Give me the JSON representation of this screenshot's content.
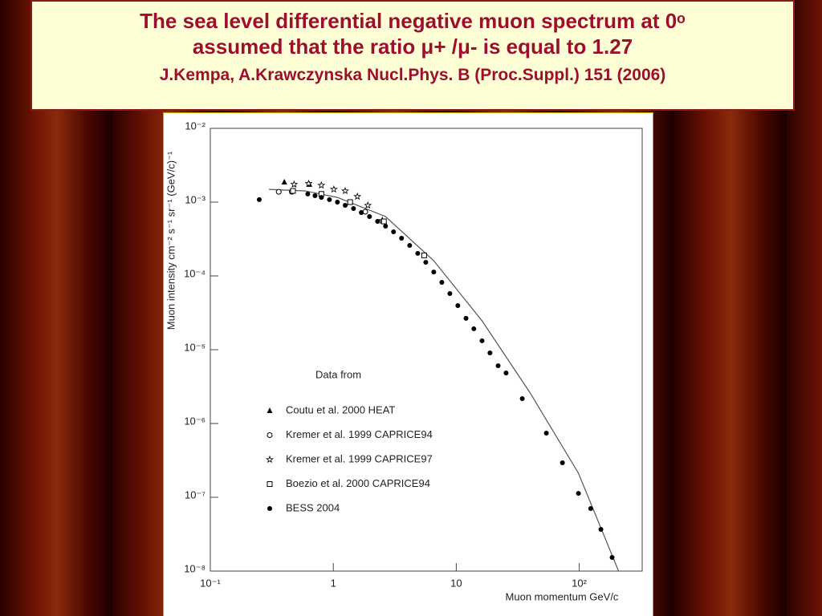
{
  "header": {
    "title": [
      "The sea level differential negative muon spectrum at 0ᵒ",
      "assumed  that the ratio μ+ /μ- is equal to 1.27"
    ],
    "subtitle": "J.Kempa, A.Krawczynska Nucl.Phys. B (Proc.Suppl.) 151 (2006)"
  },
  "chart_data": {
    "type": "scatter",
    "xlabel": "Muon momentum GeV/c",
    "ylabel": "Muon intensity cm⁻² s⁻¹ sr⁻¹ (GeV/c)⁻¹",
    "xscale": "log",
    "yscale": "log",
    "xlim": [
      0.1,
      325
    ],
    "ylim": [
      1e-08,
      0.01
    ],
    "xticks": [
      {
        "value": 0.1,
        "label": "10⁻¹"
      },
      1,
      10,
      {
        "value": 100,
        "label": "10²"
      }
    ],
    "yticks": [
      {
        "value": 1e-08,
        "label": "10⁻⁸"
      },
      {
        "value": 1e-07,
        "label": "10⁻⁷"
      },
      {
        "value": 1e-06,
        "label": "10⁻⁶"
      },
      {
        "value": 1e-05,
        "label": "10⁻⁵"
      },
      {
        "value": 0.0001,
        "label": "10⁻⁴"
      },
      {
        "value": 0.001,
        "label": "10⁻³"
      },
      {
        "value": 0.01,
        "label": "10⁻²"
      }
    ],
    "legend": "center left",
    "legend_title": "Data from",
    "series": [
      {
        "name": "Coutu et al. 2000 HEAT",
        "marker": "triangle",
        "color": "#000000",
        "x": [
          0.4,
          0.64
        ],
        "values": [
          0.00187,
          0.00174
        ]
      },
      {
        "name": "Kremer et al. 1999 CAPRICE94",
        "marker": "circle-open",
        "color": "#000000",
        "x": [
          0.36,
          0.46,
          1.82
        ],
        "values": [
          0.00138,
          0.00138,
          0.00074
        ]
      },
      {
        "name": "Kremer et al. 1999 CAPRICE97",
        "marker": "star",
        "color": "#000000",
        "x": [
          0.48,
          0.63,
          0.8,
          1.01,
          1.25,
          1.57,
          1.91,
          2.5
        ],
        "values": [
          0.00174,
          0.00178,
          0.00169,
          0.00149,
          0.00142,
          0.00119,
          0.000905,
          0.000562
        ]
      },
      {
        "name": "Boezio et al. 2000 CAPRICE94",
        "marker": "square",
        "color": "#000000",
        "x": [
          0.47,
          0.8,
          1.37,
          2.58,
          5.48
        ],
        "values": [
          0.00142,
          0.00129,
          0.001,
          0.000548,
          0.00019
        ]
      },
      {
        "name": "BESS 2004",
        "marker": "circle",
        "color": "#000000",
        "x": [
          0.25,
          0.62,
          0.71,
          0.8,
          0.93,
          1.08,
          1.25,
          1.46,
          1.69,
          1.97,
          2.29,
          2.66,
          3.09,
          3.59,
          4.18,
          4.86,
          5.65,
          6.56,
          7.63,
          8.87,
          10.3,
          12.0,
          13.9,
          16.2,
          18.8,
          21.9,
          25.4,
          34.4,
          54.0,
          73.0,
          98.5,
          124,
          150,
          185
        ],
        "values": [
          0.00108,
          0.00129,
          0.00122,
          0.00116,
          0.00108,
          0.001,
          0.000905,
          0.000819,
          0.000722,
          0.000637,
          0.000548,
          0.000472,
          0.000396,
          0.000324,
          0.000259,
          0.000202,
          0.000153,
          0.000113,
          8.19e-05,
          5.77e-05,
          3.96e-05,
          2.66e-05,
          1.92e-05,
          1.32e-05,
          9.05e-06,
          6.07e-06,
          4.84e-06,
          2.17e-06,
          7.41e-07,
          2.93e-07,
          1.13e-07,
          7.05e-08,
          3.67e-08,
          1.53e-08
        ]
      }
    ],
    "curve": {
      "color": "#555555",
      "x": [
        0.3,
        0.59,
        1.08,
        2.66,
        6.56,
        16.2,
        39.9,
        98.5,
        209
      ],
      "values": [
        0.00149,
        0.00142,
        0.00116,
        0.000637,
        0.000161,
        2.46e-05,
        2.59e-06,
        2.12e-07,
        1e-08
      ]
    }
  }
}
